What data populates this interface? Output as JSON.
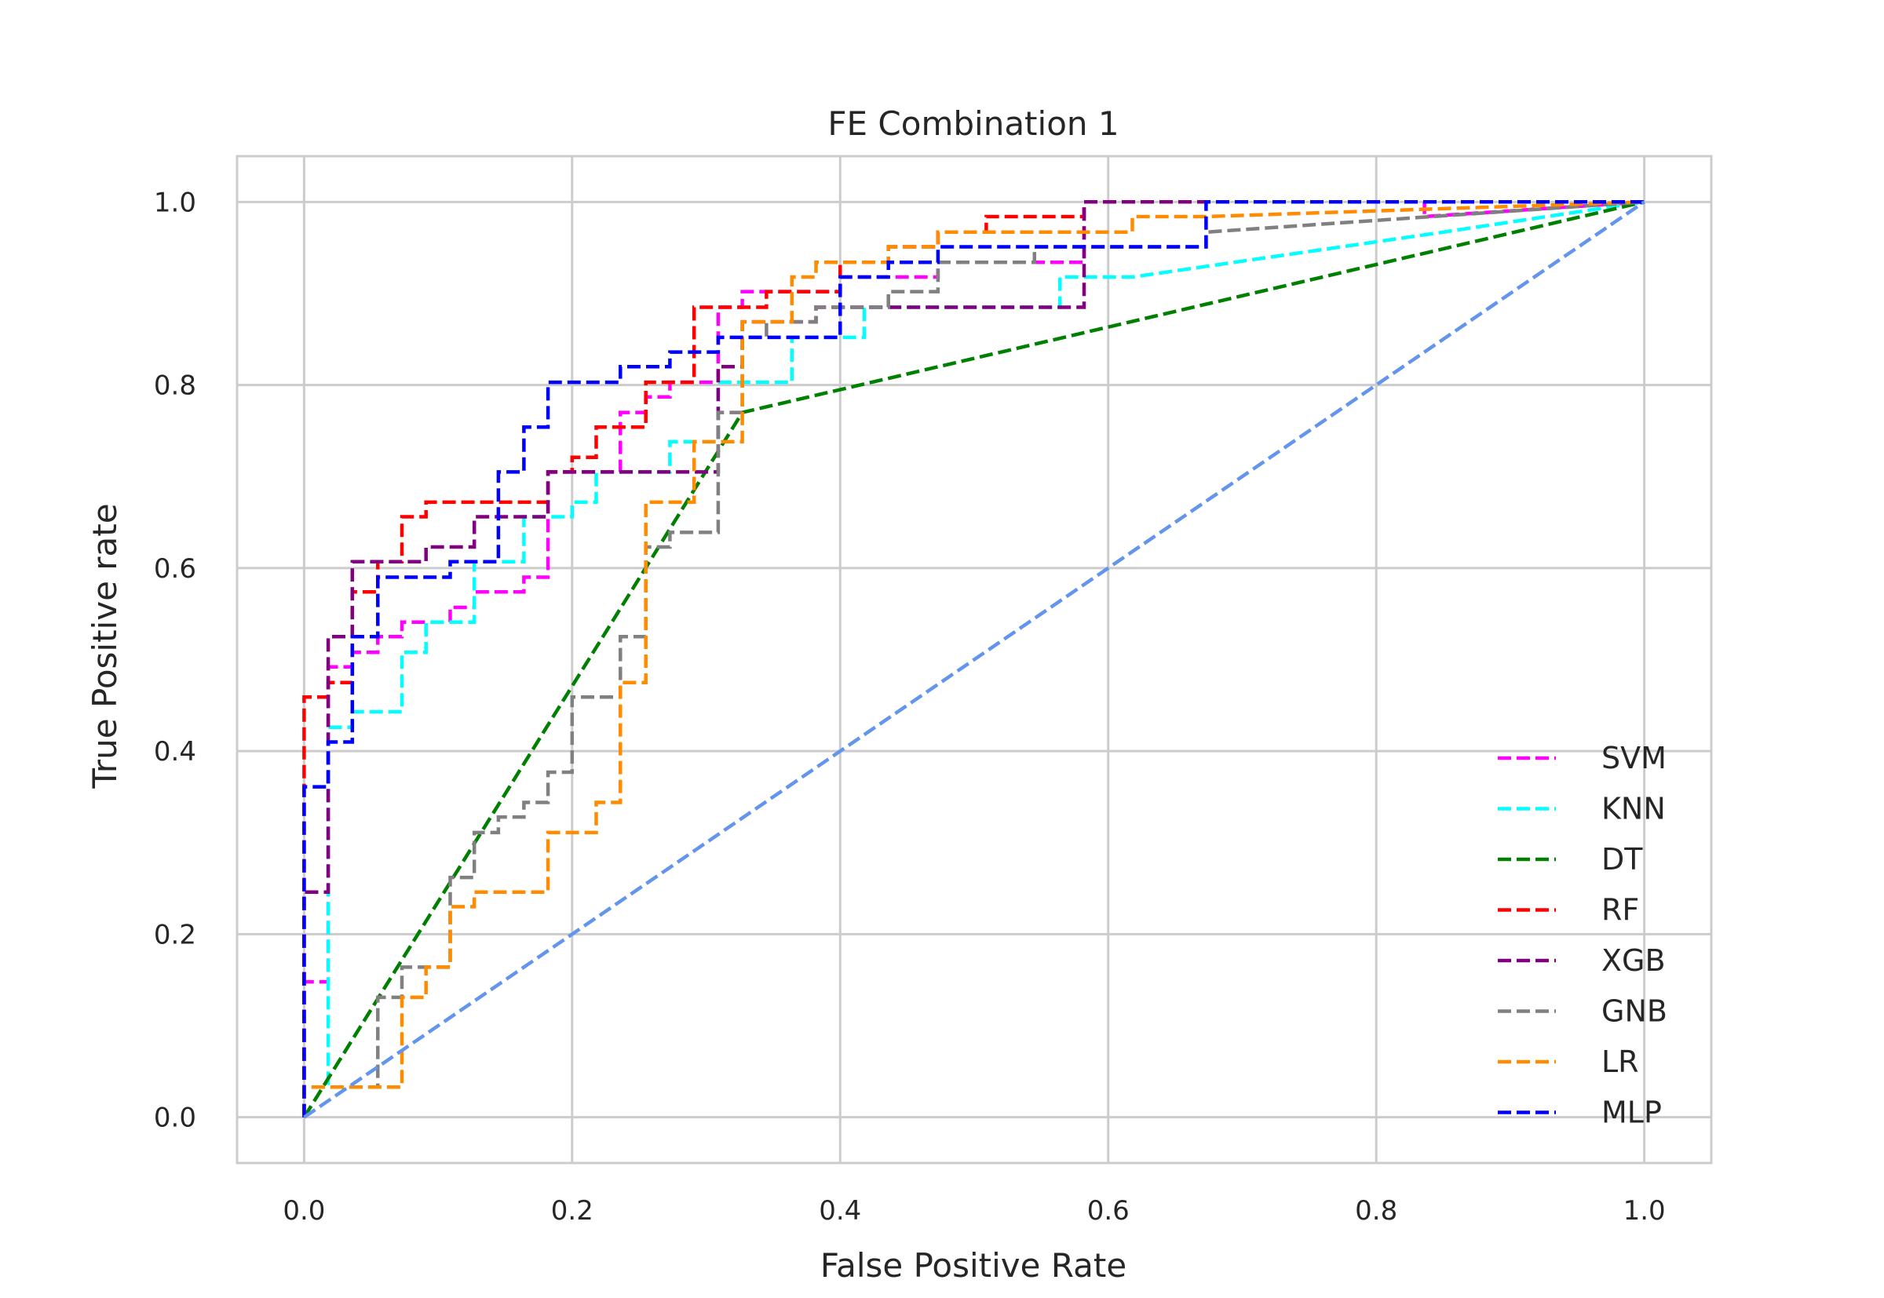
{
  "chart_data": {
    "type": "line",
    "title": "FE Combination 1",
    "xlabel": "False Positive Rate",
    "ylabel": "True Positive rate",
    "xlim": [
      -0.05,
      1.05
    ],
    "ylim": [
      -0.05,
      1.05
    ],
    "xticks": [
      0.0,
      0.2,
      0.4,
      0.6,
      0.8,
      1.0
    ],
    "yticks": [
      0.0,
      0.2,
      0.4,
      0.6,
      0.8,
      1.0
    ],
    "xtick_labels": [
      "0.0",
      "0.2",
      "0.4",
      "0.6",
      "0.8",
      "1.0"
    ],
    "ytick_labels": [
      "0.0",
      "0.2",
      "0.4",
      "0.6",
      "0.8",
      "1.0"
    ],
    "grid": true,
    "legend_position": "lower-right",
    "series": [
      {
        "name": "SVM",
        "color": "#ff00ff",
        "style": "dashed",
        "x": [
          0.0,
          0.0,
          0.018,
          0.018,
          0.036,
          0.036,
          0.055,
          0.055,
          0.073,
          0.073,
          0.109,
          0.109,
          0.127,
          0.127,
          0.164,
          0.164,
          0.182,
          0.182,
          0.236,
          0.236,
          0.255,
          0.255,
          0.273,
          0.273,
          0.309,
          0.309,
          0.327,
          0.327,
          0.4,
          0.4,
          0.473,
          0.473,
          0.582,
          0.582,
          0.836,
          0.836,
          1.0
        ],
        "y": [
          0.0,
          0.148,
          0.148,
          0.492,
          0.492,
          0.508,
          0.508,
          0.525,
          0.525,
          0.541,
          0.541,
          0.557,
          0.557,
          0.574,
          0.574,
          0.59,
          0.59,
          0.705,
          0.705,
          0.77,
          0.77,
          0.787,
          0.787,
          0.803,
          0.803,
          0.885,
          0.885,
          0.902,
          0.902,
          0.918,
          0.918,
          0.934,
          0.934,
          1.0,
          1.0,
          0.984,
          1.0
        ]
      },
      {
        "name": "KNN",
        "color": "#00ffff",
        "style": "dashed",
        "x": [
          0.0,
          0.0,
          0.018,
          0.018,
          0.036,
          0.036,
          0.073,
          0.073,
          0.091,
          0.091,
          0.127,
          0.127,
          0.164,
          0.164,
          0.2,
          0.2,
          0.218,
          0.218,
          0.273,
          0.273,
          0.309,
          0.309,
          0.364,
          0.364,
          0.418,
          0.418,
          0.564,
          0.564,
          0.618,
          0.85,
          1.0
        ],
        "y": [
          0.0,
          0.033,
          0.033,
          0.426,
          0.426,
          0.443,
          0.443,
          0.508,
          0.508,
          0.541,
          0.541,
          0.607,
          0.607,
          0.656,
          0.656,
          0.672,
          0.672,
          0.705,
          0.705,
          0.738,
          0.738,
          0.803,
          0.803,
          0.852,
          0.852,
          0.885,
          0.885,
          0.918,
          0.918,
          0.967,
          1.0
        ]
      },
      {
        "name": "DT",
        "color": "#008000",
        "style": "dashed",
        "x": [
          0.0,
          0.327,
          1.0
        ],
        "y": [
          0.0,
          0.77,
          1.0
        ]
      },
      {
        "name": "RF",
        "color": "#ff0000",
        "style": "dashed",
        "x": [
          0.0,
          0.0,
          0.018,
          0.018,
          0.036,
          0.036,
          0.055,
          0.055,
          0.073,
          0.073,
          0.091,
          0.091,
          0.109,
          0.109,
          0.182,
          0.182,
          0.2,
          0.2,
          0.218,
          0.218,
          0.255,
          0.255,
          0.291,
          0.291,
          0.345,
          0.345,
          0.4,
          0.4,
          0.436,
          0.436,
          0.473,
          0.473,
          0.509,
          0.509,
          0.582,
          0.582,
          1.0
        ],
        "y": [
          0.0,
          0.459,
          0.459,
          0.475,
          0.475,
          0.574,
          0.574,
          0.607,
          0.607,
          0.656,
          0.656,
          0.672,
          0.672,
          0.672,
          0.672,
          0.705,
          0.705,
          0.721,
          0.721,
          0.754,
          0.754,
          0.803,
          0.803,
          0.885,
          0.885,
          0.902,
          0.902,
          0.934,
          0.934,
          0.951,
          0.951,
          0.967,
          0.967,
          0.984,
          0.984,
          1.0,
          1.0
        ]
      },
      {
        "name": "XGB",
        "color": "#800080",
        "style": "dashed",
        "x": [
          0.0,
          0.0,
          0.018,
          0.018,
          0.036,
          0.036,
          0.091,
          0.091,
          0.127,
          0.127,
          0.182,
          0.182,
          0.309,
          0.309,
          0.327,
          0.327,
          0.382,
          0.382,
          0.582,
          0.582,
          1.0
        ],
        "y": [
          0.0,
          0.246,
          0.246,
          0.525,
          0.525,
          0.607,
          0.607,
          0.623,
          0.623,
          0.656,
          0.656,
          0.705,
          0.705,
          0.82,
          0.82,
          0.869,
          0.869,
          0.885,
          0.885,
          1.0,
          1.0
        ]
      },
      {
        "name": "GNB",
        "color": "#808080",
        "style": "dashed",
        "x": [
          0.0,
          0.0,
          0.055,
          0.055,
          0.073,
          0.073,
          0.109,
          0.109,
          0.127,
          0.127,
          0.145,
          0.145,
          0.164,
          0.164,
          0.182,
          0.182,
          0.2,
          0.2,
          0.236,
          0.236,
          0.255,
          0.255,
          0.273,
          0.273,
          0.309,
          0.309,
          0.327,
          0.327,
          0.345,
          0.345,
          0.382,
          0.382,
          0.436,
          0.436,
          0.473,
          0.473,
          0.545,
          0.545,
          0.673,
          0.673,
          1.0
        ],
        "y": [
          0.0,
          0.033,
          0.033,
          0.131,
          0.131,
          0.164,
          0.164,
          0.262,
          0.262,
          0.311,
          0.311,
          0.328,
          0.328,
          0.344,
          0.344,
          0.377,
          0.377,
          0.459,
          0.459,
          0.525,
          0.525,
          0.623,
          0.623,
          0.639,
          0.639,
          0.77,
          0.77,
          0.852,
          0.852,
          0.869,
          0.869,
          0.885,
          0.885,
          0.902,
          0.902,
          0.934,
          0.934,
          0.951,
          0.951,
          0.967,
          1.0
        ]
      },
      {
        "name": "LR",
        "color": "#ff8c00",
        "style": "dashed",
        "x": [
          0.0,
          0.0,
          0.073,
          0.073,
          0.091,
          0.091,
          0.109,
          0.109,
          0.127,
          0.127,
          0.182,
          0.182,
          0.218,
          0.218,
          0.236,
          0.236,
          0.255,
          0.255,
          0.291,
          0.291,
          0.327,
          0.327,
          0.364,
          0.364,
          0.382,
          0.382,
          0.436,
          0.436,
          0.473,
          0.473,
          0.618,
          0.618,
          0.673,
          0.673,
          1.0
        ],
        "y": [
          0.0,
          0.033,
          0.033,
          0.131,
          0.131,
          0.164,
          0.164,
          0.23,
          0.23,
          0.246,
          0.246,
          0.311,
          0.311,
          0.344,
          0.344,
          0.475,
          0.475,
          0.672,
          0.672,
          0.738,
          0.738,
          0.869,
          0.869,
          0.918,
          0.918,
          0.934,
          0.934,
          0.951,
          0.951,
          0.967,
          0.967,
          0.984,
          0.984,
          0.984,
          1.0
        ]
      },
      {
        "name": "MLP",
        "color": "#0000ff",
        "style": "dashed",
        "x": [
          0.0,
          0.0,
          0.018,
          0.018,
          0.036,
          0.036,
          0.055,
          0.055,
          0.109,
          0.109,
          0.145,
          0.145,
          0.164,
          0.164,
          0.182,
          0.182,
          0.236,
          0.236,
          0.273,
          0.273,
          0.309,
          0.309,
          0.4,
          0.4,
          0.436,
          0.436,
          0.473,
          0.473,
          0.673,
          0.673,
          1.0
        ],
        "y": [
          0.0,
          0.361,
          0.361,
          0.41,
          0.41,
          0.525,
          0.525,
          0.59,
          0.59,
          0.607,
          0.607,
          0.705,
          0.705,
          0.754,
          0.754,
          0.803,
          0.803,
          0.82,
          0.82,
          0.836,
          0.836,
          0.852,
          0.852,
          0.918,
          0.918,
          0.934,
          0.934,
          0.951,
          0.951,
          1.0,
          1.0
        ]
      },
      {
        "name": "",
        "color": "#6495ed",
        "style": "dashed",
        "x": [
          0.0,
          1.0
        ],
        "y": [
          0.0,
          1.0
        ]
      }
    ]
  }
}
